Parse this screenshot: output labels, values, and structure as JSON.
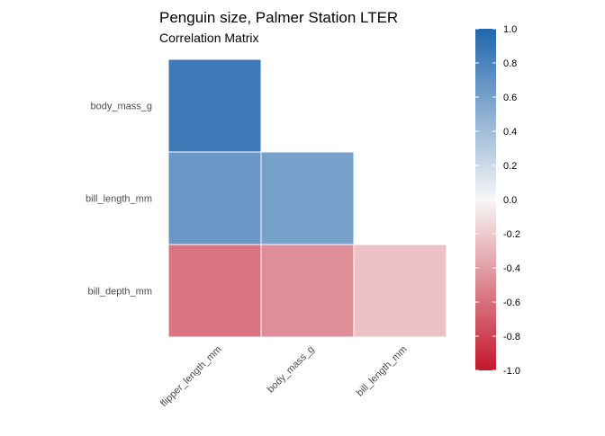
{
  "chart_data": {
    "type": "heatmap",
    "title": "Penguin size, Palmer Station LTER",
    "subtitle": "Correlation Matrix",
    "x_categories": [
      "flipper_length_mm",
      "body_mass_g",
      "bill_length_mm"
    ],
    "y_categories": [
      "body_mass_g",
      "bill_length_mm",
      "bill_depth_mm"
    ],
    "cells": [
      {
        "x": "flipper_length_mm",
        "y": "body_mass_g",
        "value": 0.87
      },
      {
        "x": "flipper_length_mm",
        "y": "bill_length_mm",
        "value": 0.66
      },
      {
        "x": "body_mass_g",
        "y": "bill_length_mm",
        "value": 0.6
      },
      {
        "x": "flipper_length_mm",
        "y": "bill_depth_mm",
        "value": -0.58
      },
      {
        "x": "body_mass_g",
        "y": "bill_depth_mm",
        "value": -0.47
      },
      {
        "x": "bill_length_mm",
        "y": "bill_depth_mm",
        "value": -0.24
      }
    ],
    "legend": {
      "position": "right",
      "range": [
        -1.0,
        1.0
      ],
      "ticks": [
        "1.0",
        "0.8",
        "0.6",
        "0.4",
        "0.2",
        "0.0",
        "-0.2",
        "-0.4",
        "-0.6",
        "-0.8",
        "-1.0"
      ],
      "tick_values": [
        1.0,
        0.8,
        0.6,
        0.4,
        0.2,
        0.0,
        -0.2,
        -0.4,
        -0.6,
        -0.8,
        -1.0
      ]
    },
    "colors": {
      "low": "#c3172b",
      "mid": "#f7f7f7",
      "high": "#2166ac"
    },
    "grid": false
  }
}
